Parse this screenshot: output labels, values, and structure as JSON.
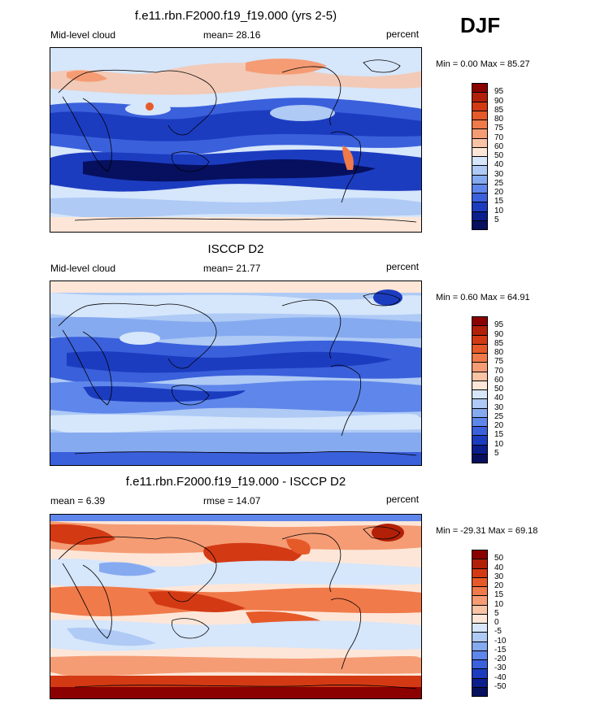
{
  "season": "DJF",
  "panels": [
    {
      "title": "f.e11.rbn.F2000.f19_f19.000 (yrs 2-5)",
      "left_label": "Mid-level cloud",
      "center_label": "mean=  28.16",
      "right_label": "percent",
      "minmax": "Min =   0.00 Max =  85.27",
      "colorbar": {
        "labels": [
          "95",
          "90",
          "85",
          "80",
          "75",
          "70",
          "60",
          "50",
          "40",
          "30",
          "25",
          "20",
          "15",
          "10",
          "5"
        ],
        "colors": [
          "#8b0000",
          "#b22008",
          "#d33a14",
          "#e65a2a",
          "#f07a4a",
          "#f59c74",
          "#f9c3a6",
          "#fde6d8",
          "#d6e6fb",
          "#aecaf5",
          "#86aaf0",
          "#5f86ea",
          "#3a60dc",
          "#1c3cc0",
          "#0a1e8c",
          "#06105e"
        ]
      }
    },
    {
      "title": "ISCCP D2",
      "left_label": "Mid-level cloud",
      "center_label": "mean=  21.77",
      "right_label": "percent",
      "minmax": "Min =   0.60 Max =  64.91",
      "colorbar": {
        "labels": [
          "95",
          "90",
          "85",
          "80",
          "75",
          "70",
          "60",
          "50",
          "40",
          "30",
          "25",
          "20",
          "15",
          "10",
          "5"
        ],
        "colors": [
          "#8b0000",
          "#b22008",
          "#d33a14",
          "#e65a2a",
          "#f07a4a",
          "#f59c74",
          "#f9c3a6",
          "#fde6d8",
          "#d6e6fb",
          "#aecaf5",
          "#86aaf0",
          "#5f86ea",
          "#3a60dc",
          "#1c3cc0",
          "#0a1e8c",
          "#06105e"
        ]
      }
    },
    {
      "title": "f.e11.rbn.F2000.f19_f19.000 - ISCCP D2",
      "left_label": "mean =   6.39",
      "center_label": "rmse =  14.07",
      "right_label": "percent",
      "minmax": "Min = -29.31 Max =  69.18",
      "colorbar": {
        "labels": [
          "50",
          "40",
          "30",
          "20",
          "15",
          "10",
          "5",
          "0",
          "-5",
          "-10",
          "-15",
          "-20",
          "-30",
          "-40",
          "-50"
        ],
        "colors": [
          "#8b0000",
          "#b22008",
          "#d33a14",
          "#e65a2a",
          "#f07a4a",
          "#f59c74",
          "#f9c3a6",
          "#fde6d8",
          "#d6e6fb",
          "#aecaf5",
          "#86aaf0",
          "#5f86ea",
          "#3a60dc",
          "#1c3cc0",
          "#0a1e8c",
          "#06105e"
        ]
      }
    }
  ]
}
